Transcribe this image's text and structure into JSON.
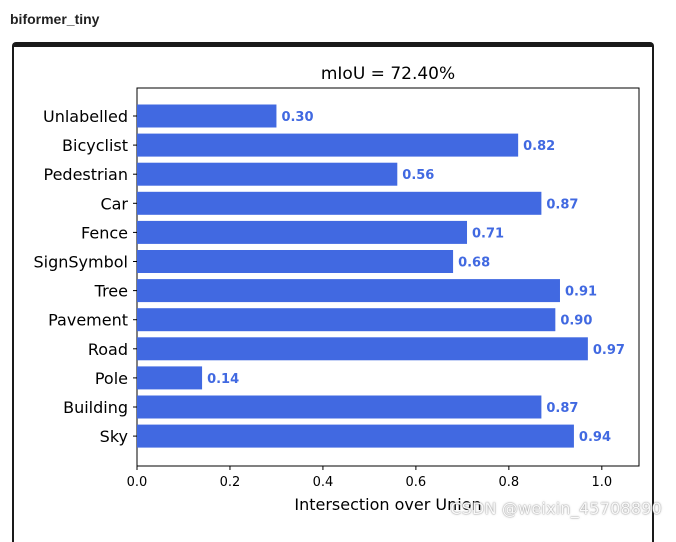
{
  "header": {
    "title": "biformer_tiny"
  },
  "chart_data": {
    "type": "bar",
    "orientation": "horizontal",
    "title": "mIoU = 72.40%",
    "xlabel": "Intersection over Union",
    "ylabel": "",
    "xlim": [
      0,
      1.08
    ],
    "xticks": [
      "0.0",
      "0.2",
      "0.4",
      "0.6",
      "0.8",
      "1.0"
    ],
    "categories": [
      "Unlabelled",
      "Bicyclist",
      "Pedestrian",
      "Car",
      "Fence",
      "SignSymbol",
      "Tree",
      "Pavement",
      "Road",
      "Pole",
      "Building",
      "Sky"
    ],
    "values": [
      0.3,
      0.82,
      0.56,
      0.87,
      0.71,
      0.68,
      0.91,
      0.9,
      0.97,
      0.14,
      0.87,
      0.94
    ],
    "value_labels": [
      "0.30",
      "0.82",
      "0.56",
      "0.87",
      "0.71",
      "0.68",
      "0.91",
      "0.90",
      "0.97",
      "0.14",
      "0.87",
      "0.94"
    ],
    "bar_color": "#4169e1",
    "label_color": "#4169e1",
    "grid": false,
    "legend": "none"
  },
  "watermark": {
    "text": "CSDN @weixin_45708890"
  }
}
